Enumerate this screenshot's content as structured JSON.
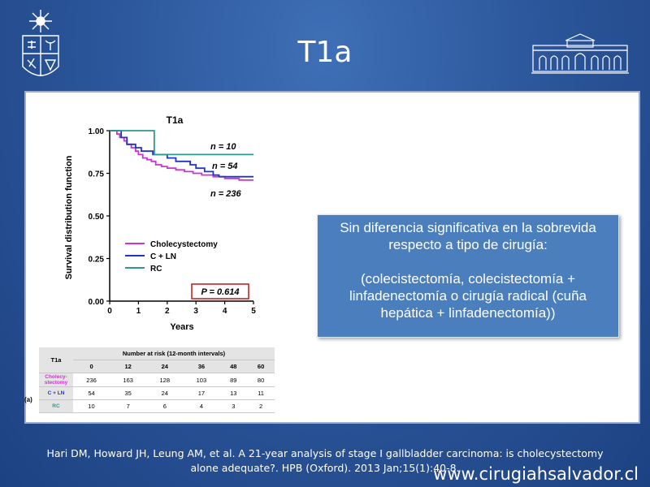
{
  "slide": {
    "title": "T1a",
    "note_line1": "Sin diferencia significativa en la sobrevida respecto a tipo de cirugía:",
    "note_line2": "(colecistectomía, colecistectomía + linfadenectomía o cirugía radical (cuña hepática + linfadenectomía))",
    "citation": "Hari DM, Howard JH, Leung AM, et al. A 21-year analysis of stage I gallbladder carcinoma: is cholecystectomy alone adequate?.  HPB (Oxford). 2013 Jan;15(1):40-8.",
    "website": "www.cirugiahsalvador.cl"
  },
  "chart_data": {
    "type": "line",
    "step": true,
    "title": "T1a",
    "xlabel": "Years",
    "ylabel": "Survival distribution function",
    "xlim": [
      0,
      5
    ],
    "ylim": [
      0,
      1
    ],
    "x_ticks": [
      "0",
      "1",
      "2",
      "3",
      "4",
      "5"
    ],
    "y_ticks": [
      "0.00",
      "0.25",
      "0.50",
      "0.75",
      "1.00"
    ],
    "legend_position": "lower-left",
    "p_value_label": "P = 0.614",
    "series": [
      {
        "name": "Cholecystectomy",
        "color": "#cc33cc",
        "annotation": "n = 236",
        "x": [
          0,
          0.25,
          0.35,
          0.5,
          0.6,
          0.75,
          0.9,
          1.0,
          1.15,
          1.3,
          1.45,
          1.6,
          1.8,
          2.0,
          2.3,
          2.6,
          2.9,
          3.2,
          3.6,
          4.0,
          4.5,
          5.0
        ],
        "y": [
          1.0,
          0.98,
          0.96,
          0.94,
          0.92,
          0.9,
          0.88,
          0.86,
          0.84,
          0.83,
          0.82,
          0.8,
          0.79,
          0.78,
          0.77,
          0.76,
          0.75,
          0.74,
          0.73,
          0.72,
          0.71,
          0.71
        ]
      },
      {
        "name": "C + LN",
        "color": "#2233cc",
        "annotation": "n = 54",
        "x": [
          0,
          0.4,
          0.6,
          0.9,
          1.1,
          1.5,
          2.0,
          2.3,
          2.8,
          3.0,
          3.3,
          3.6,
          3.8,
          4.2,
          5.0
        ],
        "y": [
          1.0,
          0.96,
          0.92,
          0.9,
          0.88,
          0.86,
          0.84,
          0.82,
          0.8,
          0.78,
          0.76,
          0.74,
          0.73,
          0.73,
          0.73
        ]
      },
      {
        "name": "RC",
        "color": "#2a9a8a",
        "annotation": "n = 10",
        "x": [
          0,
          1.55,
          5.0
        ],
        "y": [
          1.0,
          0.86,
          0.86
        ]
      }
    ]
  },
  "risk_table": {
    "label": "T1a",
    "header": "Number at risk (12-month intervals)",
    "months": [
      "0",
      "12",
      "24",
      "36",
      "48",
      "60"
    ],
    "figure_letter": "(a)",
    "rows": [
      {
        "name": "Cholecy-stectomy",
        "color": "#cc33cc",
        "values": [
          "236",
          "163",
          "128",
          "103",
          "89",
          "80"
        ]
      },
      {
        "name": "C + LN",
        "color": "#2233cc",
        "values": [
          "54",
          "35",
          "24",
          "17",
          "13",
          "11"
        ]
      },
      {
        "name": "RC",
        "color": "#2a9a8a",
        "values": [
          "10",
          "7",
          "6",
          "4",
          "3",
          "2"
        ]
      }
    ]
  }
}
